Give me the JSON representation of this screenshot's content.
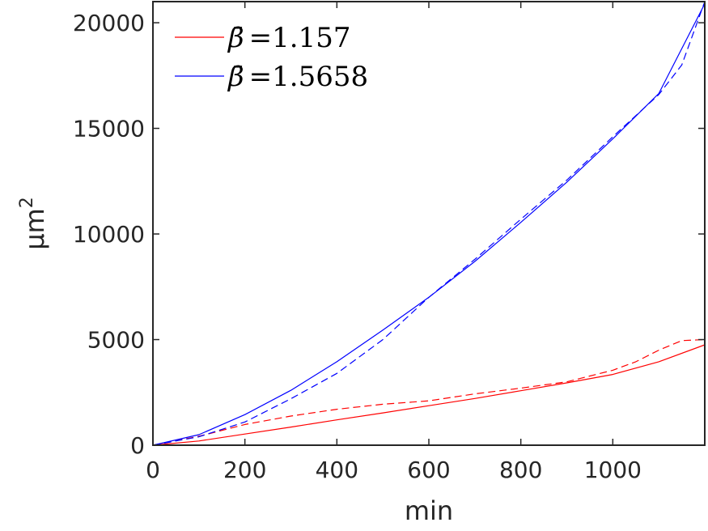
{
  "chart_data": {
    "type": "line",
    "xlabel": "min",
    "ylabel": "μm",
    "ylabel_sup": "2",
    "xlim": [
      0,
      1200
    ],
    "ylim": [
      0,
      21000
    ],
    "xticks": [
      0,
      200,
      400,
      600,
      800,
      1000
    ],
    "yticks": [
      0,
      5000,
      10000,
      15000,
      20000
    ],
    "grid": false,
    "legend_position": "top-left",
    "series": [
      {
        "name": "β̄ =1.157",
        "legend_symbol": "β̄",
        "legend_value": "=1.157",
        "color": "#ff0000",
        "style": "solid",
        "x": [
          0,
          100,
          200,
          300,
          400,
          500,
          600,
          700,
          800,
          900,
          1000,
          1100,
          1200
        ],
        "y": [
          0,
          200,
          530,
          860,
          1200,
          1530,
          1870,
          2210,
          2580,
          2950,
          3350,
          3950,
          4750
        ]
      },
      {
        "name": "data (red, dashed)",
        "legend_hidden": true,
        "color": "#ff0000",
        "style": "dashed",
        "x": [
          0,
          100,
          200,
          300,
          400,
          500,
          600,
          700,
          800,
          900,
          1000,
          1050,
          1100,
          1150,
          1200
        ],
        "y": [
          0,
          420,
          980,
          1380,
          1700,
          1940,
          2100,
          2430,
          2700,
          3000,
          3550,
          3950,
          4500,
          4950,
          5000
        ]
      },
      {
        "name": "β̄ =1.5658",
        "legend_symbol": "β̄",
        "legend_value": "=1.5658",
        "color": "#0000ff",
        "style": "solid",
        "x": [
          0,
          100,
          200,
          300,
          400,
          500,
          600,
          700,
          800,
          900,
          1000,
          1100,
          1200
        ],
        "y": [
          0,
          500,
          1450,
          2600,
          3950,
          5450,
          7000,
          8700,
          10550,
          12450,
          14500,
          16650,
          20900
        ]
      },
      {
        "name": "data (blue, dashed)",
        "legend_hidden": true,
        "color": "#0000ff",
        "style": "dashed",
        "x": [
          0,
          100,
          200,
          300,
          400,
          500,
          600,
          700,
          800,
          900,
          1000,
          1100,
          1150,
          1200
        ],
        "y": [
          0,
          400,
          1100,
          2200,
          3400,
          5000,
          7000,
          8800,
          10700,
          12550,
          14600,
          16600,
          18000,
          21000
        ]
      }
    ]
  }
}
